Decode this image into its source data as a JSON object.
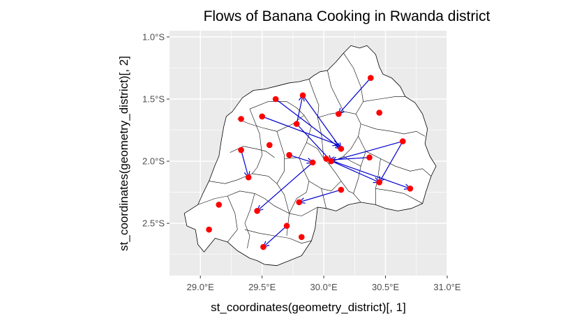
{
  "chart_data": {
    "type": "map",
    "title": "Flows of Banana Cooking in Rwanda district",
    "xlabel": "st_coordinates(geometry_district)[, 1]",
    "ylabel": "st_coordinates(geometry_district)[, 2]",
    "xlim": [
      28.75,
      31.0
    ],
    "ylim": [
      -2.92,
      -0.95
    ],
    "x_ticks": [
      {
        "value": 29.0,
        "label": "29.0°E"
      },
      {
        "value": 29.5,
        "label": "29.5°E"
      },
      {
        "value": 30.0,
        "label": "30.0°E"
      },
      {
        "value": 30.5,
        "label": "30.5°E"
      },
      {
        "value": 31.0,
        "label": "31.0°E"
      }
    ],
    "y_ticks": [
      {
        "value": -1.0,
        "label": "1.0°S"
      },
      {
        "value": -1.5,
        "label": "1.5°S"
      },
      {
        "value": -2.0,
        "label": "2.0°S"
      },
      {
        "value": -2.5,
        "label": "2.5°S"
      }
    ],
    "grid": true,
    "colors": {
      "panel_bg": "#ebebeb",
      "grid": "#ffffff",
      "land": "#ffffff",
      "border": "#000000",
      "point": "#ff0000",
      "arrow": "#0000cd"
    },
    "outline": [
      [
        29.34,
        -1.49
      ],
      [
        29.43,
        -1.43
      ],
      [
        29.52,
        -1.42
      ],
      [
        29.6,
        -1.4
      ],
      [
        29.72,
        -1.37
      ],
      [
        29.8,
        -1.36
      ],
      [
        29.88,
        -1.34
      ],
      [
        29.92,
        -1.31
      ],
      [
        29.97,
        -1.28
      ],
      [
        30.03,
        -1.27
      ],
      [
        30.1,
        -1.2
      ],
      [
        30.16,
        -1.13
      ],
      [
        30.22,
        -1.07
      ],
      [
        30.29,
        -1.09
      ],
      [
        30.35,
        -1.07
      ],
      [
        30.42,
        -1.14
      ],
      [
        30.45,
        -1.24
      ],
      [
        30.48,
        -1.3
      ],
      [
        30.55,
        -1.33
      ],
      [
        30.62,
        -1.4
      ],
      [
        30.66,
        -1.48
      ],
      [
        30.74,
        -1.53
      ],
      [
        30.8,
        -1.62
      ],
      [
        30.84,
        -1.74
      ],
      [
        30.82,
        -1.86
      ],
      [
        30.86,
        -1.96
      ],
      [
        30.91,
        -2.04
      ],
      [
        30.87,
        -2.12
      ],
      [
        30.83,
        -2.24
      ],
      [
        30.8,
        -2.34
      ],
      [
        30.71,
        -2.38
      ],
      [
        30.6,
        -2.4
      ],
      [
        30.5,
        -2.38
      ],
      [
        30.42,
        -2.35
      ],
      [
        30.3,
        -2.33
      ],
      [
        30.2,
        -2.35
      ],
      [
        30.1,
        -2.4
      ],
      [
        30.02,
        -2.38
      ],
      [
        29.95,
        -2.37
      ],
      [
        29.94,
        -2.45
      ],
      [
        29.93,
        -2.54
      ],
      [
        29.9,
        -2.64
      ],
      [
        29.82,
        -2.76
      ],
      [
        29.72,
        -2.8
      ],
      [
        29.62,
        -2.84
      ],
      [
        29.52,
        -2.83
      ],
      [
        29.46,
        -2.8
      ],
      [
        29.4,
        -2.78
      ],
      [
        29.3,
        -2.72
      ],
      [
        29.22,
        -2.65
      ],
      [
        29.12,
        -2.62
      ],
      [
        29.03,
        -2.73
      ],
      [
        28.98,
        -2.67
      ],
      [
        28.96,
        -2.55
      ],
      [
        28.89,
        -2.52
      ],
      [
        28.87,
        -2.42
      ],
      [
        28.98,
        -2.35
      ],
      [
        29.02,
        -2.26
      ],
      [
        29.07,
        -2.16
      ],
      [
        29.12,
        -2.03
      ],
      [
        29.15,
        -1.96
      ],
      [
        29.17,
        -1.83
      ],
      [
        29.19,
        -1.72
      ],
      [
        29.21,
        -1.64
      ],
      [
        29.26,
        -1.6
      ]
    ],
    "district_borders": [
      [
        [
          29.24,
          -1.93
        ],
        [
          29.35,
          -1.88
        ],
        [
          29.45,
          -1.9
        ],
        [
          29.53,
          -1.92
        ],
        [
          29.6,
          -1.97
        ]
      ],
      [
        [
          29.3,
          -1.66
        ],
        [
          29.4,
          -1.7
        ],
        [
          29.5,
          -1.73
        ],
        [
          29.62,
          -1.76
        ]
      ],
      [
        [
          29.4,
          -1.58
        ],
        [
          29.48,
          -1.78
        ],
        [
          29.5,
          -1.95
        ],
        [
          29.46,
          -2.05
        ],
        [
          29.42,
          -2.1
        ]
      ],
      [
        [
          29.62,
          -1.76
        ],
        [
          29.68,
          -1.95
        ],
        [
          29.68,
          -2.08
        ],
        [
          29.62,
          -2.18
        ]
      ],
      [
        [
          29.07,
          -2.16
        ],
        [
          29.2,
          -2.18
        ],
        [
          29.3,
          -2.15
        ],
        [
          29.42,
          -2.1
        ],
        [
          29.55,
          -2.12
        ],
        [
          29.62,
          -2.18
        ]
      ],
      [
        [
          28.98,
          -2.35
        ],
        [
          29.12,
          -2.3
        ],
        [
          29.22,
          -2.28
        ],
        [
          29.32,
          -2.24
        ],
        [
          29.44,
          -2.26
        ]
      ],
      [
        [
          29.22,
          -2.28
        ],
        [
          29.28,
          -2.42
        ],
        [
          29.3,
          -2.55
        ],
        [
          29.22,
          -2.65
        ]
      ],
      [
        [
          29.44,
          -2.26
        ],
        [
          29.52,
          -2.3
        ],
        [
          29.6,
          -2.36
        ],
        [
          29.72,
          -2.42
        ],
        [
          29.82,
          -2.44
        ],
        [
          29.95,
          -2.37
        ]
      ],
      [
        [
          29.44,
          -2.26
        ],
        [
          29.4,
          -2.4
        ],
        [
          29.36,
          -2.5
        ],
        [
          29.4,
          -2.6
        ],
        [
          29.38,
          -2.7
        ]
      ],
      [
        [
          29.36,
          -2.55
        ],
        [
          29.48,
          -2.58
        ],
        [
          29.6,
          -2.6
        ],
        [
          29.72,
          -2.62
        ],
        [
          29.82,
          -2.66
        ],
        [
          29.9,
          -2.64
        ]
      ],
      [
        [
          29.62,
          -2.18
        ],
        [
          29.68,
          -2.27
        ],
        [
          29.72,
          -2.42
        ],
        [
          29.7,
          -2.6
        ]
      ],
      [
        [
          29.4,
          -1.58
        ],
        [
          29.55,
          -1.52
        ],
        [
          29.7,
          -1.52
        ],
        [
          29.78,
          -1.57
        ],
        [
          29.84,
          -1.63
        ]
      ],
      [
        [
          29.62,
          -1.76
        ],
        [
          29.75,
          -1.7
        ],
        [
          29.84,
          -1.63
        ],
        [
          29.9,
          -1.72
        ],
        [
          29.86,
          -1.85
        ],
        [
          29.8,
          -1.97
        ],
        [
          29.68,
          -1.98
        ]
      ],
      [
        [
          29.86,
          -1.85
        ],
        [
          29.95,
          -1.9
        ],
        [
          30.0,
          -1.98
        ],
        [
          30.04,
          -2.02
        ],
        [
          30.1,
          -2.1
        ],
        [
          30.14,
          -2.16
        ]
      ],
      [
        [
          29.8,
          -1.97
        ],
        [
          29.84,
          -2.08
        ],
        [
          29.88,
          -2.16
        ],
        [
          29.86,
          -2.25
        ],
        [
          29.78,
          -2.3
        ],
        [
          29.72,
          -2.42
        ]
      ],
      [
        [
          29.88,
          -2.16
        ],
        [
          29.98,
          -2.22
        ],
        [
          30.06,
          -2.24
        ],
        [
          30.14,
          -2.16
        ]
      ],
      [
        [
          29.98,
          -2.22
        ],
        [
          30.0,
          -2.3
        ],
        [
          30.02,
          -2.38
        ]
      ],
      [
        [
          29.88,
          -1.34
        ],
        [
          29.92,
          -1.45
        ],
        [
          29.96,
          -1.55
        ],
        [
          29.95,
          -1.65
        ],
        [
          29.98,
          -1.78
        ],
        [
          30.0,
          -1.98
        ]
      ],
      [
        [
          29.95,
          -1.65
        ],
        [
          30.05,
          -1.62
        ],
        [
          30.16,
          -1.6
        ],
        [
          30.26,
          -1.62
        ],
        [
          30.3,
          -1.7
        ],
        [
          30.28,
          -1.8
        ],
        [
          30.22,
          -1.9
        ],
        [
          30.16,
          -1.96
        ],
        [
          30.04,
          -2.02
        ]
      ],
      [
        [
          30.03,
          -1.27
        ],
        [
          30.06,
          -1.4
        ],
        [
          30.12,
          -1.52
        ],
        [
          30.16,
          -1.6
        ]
      ],
      [
        [
          30.16,
          -1.13
        ],
        [
          30.24,
          -1.25
        ],
        [
          30.3,
          -1.4
        ],
        [
          30.32,
          -1.52
        ],
        [
          30.26,
          -1.62
        ]
      ],
      [
        [
          30.32,
          -1.52
        ],
        [
          30.45,
          -1.5
        ],
        [
          30.58,
          -1.48
        ],
        [
          30.66,
          -1.48
        ]
      ],
      [
        [
          30.3,
          -1.7
        ],
        [
          30.42,
          -1.74
        ],
        [
          30.55,
          -1.76
        ],
        [
          30.65,
          -1.78
        ],
        [
          30.75,
          -1.76
        ],
        [
          30.82,
          -1.8
        ]
      ],
      [
        [
          30.28,
          -1.8
        ],
        [
          30.34,
          -1.92
        ],
        [
          30.3,
          -2.04
        ],
        [
          30.28,
          -2.14
        ],
        [
          30.24,
          -2.26
        ],
        [
          30.3,
          -2.33
        ]
      ],
      [
        [
          30.16,
          -1.96
        ],
        [
          30.22,
          -2.0
        ],
        [
          30.3,
          -2.04
        ]
      ],
      [
        [
          30.34,
          -1.92
        ],
        [
          30.46,
          -1.98
        ],
        [
          30.58,
          -2.04
        ],
        [
          30.7,
          -2.08
        ],
        [
          30.8,
          -2.06
        ],
        [
          30.87,
          -2.12
        ]
      ],
      [
        [
          30.46,
          -1.98
        ],
        [
          30.44,
          -2.12
        ],
        [
          30.42,
          -2.22
        ],
        [
          30.42,
          -2.35
        ]
      ],
      [
        [
          30.42,
          -2.22
        ],
        [
          30.55,
          -2.24
        ],
        [
          30.65,
          -2.26
        ],
        [
          30.8,
          -2.34
        ]
      ],
      [
        [
          30.14,
          -2.16
        ],
        [
          30.2,
          -2.24
        ],
        [
          30.24,
          -2.26
        ]
      ]
    ],
    "points": [
      [
        30.38,
        -1.33
      ],
      [
        29.61,
        -1.5
      ],
      [
        29.83,
        -1.47
      ],
      [
        30.12,
        -1.62
      ],
      [
        30.45,
        -1.61
      ],
      [
        29.33,
        -1.66
      ],
      [
        29.5,
        -1.64
      ],
      [
        29.78,
        -1.7
      ],
      [
        29.56,
        -1.87
      ],
      [
        29.33,
        -1.91
      ],
      [
        29.72,
        -1.95
      ],
      [
        30.14,
        -1.9
      ],
      [
        30.64,
        -1.84
      ],
      [
        30.37,
        -1.97
      ],
      [
        30.02,
        -1.98
      ],
      [
        30.06,
        -2.0
      ],
      [
        29.91,
        -2.01
      ],
      [
        29.39,
        -2.13
      ],
      [
        30.45,
        -2.17
      ],
      [
        30.7,
        -2.22
      ],
      [
        30.14,
        -2.23
      ],
      [
        29.8,
        -2.33
      ],
      [
        29.15,
        -2.35
      ],
      [
        29.46,
        -2.4
      ],
      [
        29.7,
        -2.52
      ],
      [
        29.07,
        -2.55
      ],
      [
        29.82,
        -2.61
      ],
      [
        29.51,
        -2.69
      ]
    ],
    "flows": [
      {
        "from": [
          30.38,
          -1.33
        ],
        "to": [
          30.12,
          -1.62
        ]
      },
      {
        "from": [
          29.61,
          -1.5
        ],
        "to": [
          30.14,
          -1.9
        ]
      },
      {
        "from": [
          29.78,
          -1.7
        ],
        "to": [
          29.83,
          -1.47
        ]
      },
      {
        "from": [
          29.83,
          -1.47
        ],
        "to": [
          30.14,
          -1.9
        ]
      },
      {
        "from": [
          29.5,
          -1.64
        ],
        "to": [
          30.12,
          -1.87
        ]
      },
      {
        "from": [
          30.64,
          -1.84
        ],
        "to": [
          30.06,
          -2.0
        ]
      },
      {
        "from": [
          30.64,
          -1.84
        ],
        "to": [
          30.45,
          -2.17
        ]
      },
      {
        "from": [
          30.37,
          -1.97
        ],
        "to": [
          30.04,
          -1.99
        ]
      },
      {
        "from": [
          30.02,
          -1.98
        ],
        "to": [
          30.45,
          -2.17
        ]
      },
      {
        "from": [
          30.02,
          -1.98
        ],
        "to": [
          30.7,
          -2.22
        ]
      },
      {
        "from": [
          29.72,
          -1.95
        ],
        "to": [
          29.91,
          -2.01
        ]
      },
      {
        "from": [
          29.91,
          -2.01
        ],
        "to": [
          29.46,
          -2.4
        ]
      },
      {
        "from": [
          29.33,
          -1.91
        ],
        "to": [
          29.39,
          -2.13
        ]
      },
      {
        "from": [
          30.14,
          -2.23
        ],
        "to": [
          29.8,
          -2.33
        ]
      },
      {
        "from": [
          29.7,
          -2.52
        ],
        "to": [
          29.51,
          -2.69
        ]
      },
      {
        "from": [
          29.78,
          -1.7
        ],
        "to": [
          30.06,
          -2.0
        ]
      }
    ]
  }
}
